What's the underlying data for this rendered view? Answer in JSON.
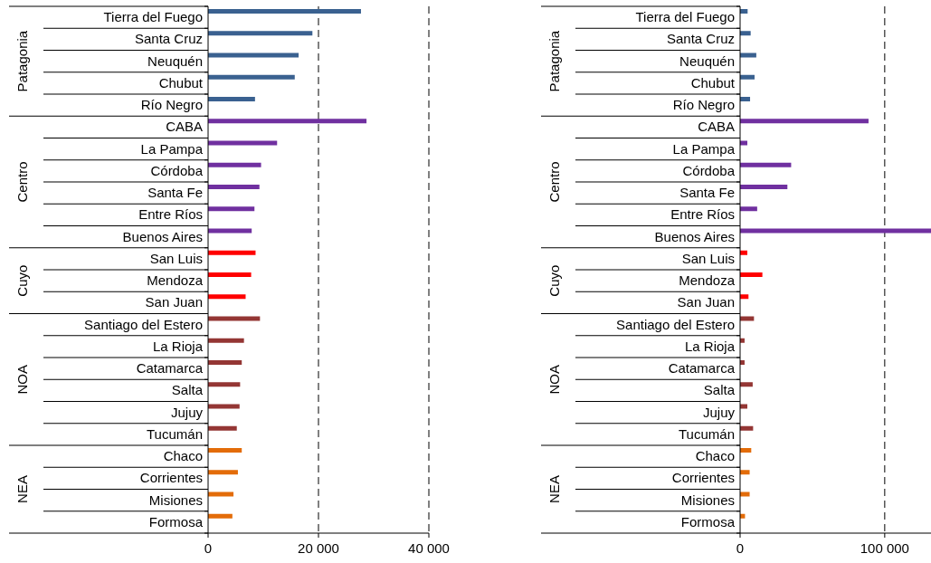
{
  "chart_data": [
    {
      "type": "bar",
      "orientation": "horizontal",
      "grid": "x",
      "xlim": [
        0,
        40000
      ],
      "xticks": [
        0,
        {
          "value": 20000,
          "label": "20 000"
        },
        {
          "value": 40000,
          "label": "40 000"
        }
      ],
      "categories": [
        "Tierra del Fuego",
        "Santa Cruz",
        "Neuquén",
        "Chubut",
        "Río Negro",
        "CABA",
        "La Pampa",
        "Córdoba",
        "Santa Fe",
        "Entre Ríos",
        "Buenos Aires",
        "San Luis",
        "Mendoza",
        "San Juan",
        "Santiago del Estero",
        "La Rioja",
        "Catamarca",
        "Salta",
        "Jujuy",
        "Tucumán",
        "Chaco",
        "Corrientes",
        "Misiones",
        "Formosa"
      ],
      "series": [
        {
          "name": "Patagonia",
          "color": "#3a6190",
          "values": [
            27700,
            18900,
            16400,
            15700,
            8500,
            null,
            null,
            null,
            null,
            null,
            null,
            null,
            null,
            null,
            null,
            null,
            null,
            null,
            null,
            null,
            null,
            null,
            null,
            null
          ]
        },
        {
          "name": "Centro",
          "color": "#7030a0",
          "values": [
            null,
            null,
            null,
            null,
            null,
            28700,
            12500,
            9600,
            9300,
            8400,
            7900,
            null,
            null,
            null,
            null,
            null,
            null,
            null,
            null,
            null,
            null,
            null,
            null,
            null
          ]
        },
        {
          "name": "Cuyo",
          "color": "#ff0000",
          "values": [
            null,
            null,
            null,
            null,
            null,
            null,
            null,
            null,
            null,
            null,
            null,
            8600,
            7800,
            6800,
            null,
            null,
            null,
            null,
            null,
            null,
            null,
            null,
            null,
            null
          ]
        },
        {
          "name": "NOA",
          "color": "#943634",
          "values": [
            null,
            null,
            null,
            null,
            null,
            null,
            null,
            null,
            null,
            null,
            null,
            null,
            null,
            null,
            9400,
            6500,
            6100,
            5800,
            5700,
            5200,
            null,
            null,
            null,
            null
          ]
        },
        {
          "name": "NEA",
          "color": "#e36c09",
          "values": [
            null,
            null,
            null,
            null,
            null,
            null,
            null,
            null,
            null,
            null,
            null,
            null,
            null,
            null,
            null,
            null,
            null,
            null,
            null,
            null,
            6100,
            5400,
            4600,
            4400
          ]
        }
      ]
    },
    {
      "type": "bar",
      "orientation": "horizontal",
      "grid": "x",
      "xlim": [
        0,
        132000
      ],
      "xticks": [
        0,
        {
          "value": 100000,
          "label": "100 000"
        }
      ],
      "categories": [
        "Tierra del Fuego",
        "Santa Cruz",
        "Neuquén",
        "Chubut",
        "Río Negro",
        "CABA",
        "La Pampa",
        "Córdoba",
        "Santa Fe",
        "Entre Ríos",
        "Buenos Aires",
        "San Luis",
        "Mendoza",
        "San Juan",
        "Santiago del Estero",
        "La Rioja",
        "Catamarca",
        "Salta",
        "Jujuy",
        "Tucumán",
        "Chaco",
        "Corrientes",
        "Misiones",
        "Formosa"
      ],
      "series": [
        {
          "name": "Patagonia",
          "color": "#3a6190",
          "values": [
            5200,
            7300,
            11200,
            10000,
            6900,
            null,
            null,
            null,
            null,
            null,
            null,
            null,
            null,
            null,
            null,
            null,
            null,
            null,
            null,
            null,
            null,
            null,
            null,
            null
          ]
        },
        {
          "name": "Centro",
          "color": "#7030a0",
          "values": [
            null,
            null,
            null,
            null,
            null,
            88800,
            5000,
            35300,
            32700,
            11800,
            132000,
            null,
            null,
            null,
            null,
            null,
            null,
            null,
            null,
            null,
            null,
            null,
            null,
            null
          ]
        },
        {
          "name": "Cuyo",
          "color": "#ff0000",
          "values": [
            null,
            null,
            null,
            null,
            null,
            null,
            null,
            null,
            null,
            null,
            null,
            5000,
            15400,
            5800,
            null,
            null,
            null,
            null,
            null,
            null,
            null,
            null,
            null,
            null
          ]
        },
        {
          "name": "NOA",
          "color": "#943634",
          "values": [
            null,
            null,
            null,
            null,
            null,
            null,
            null,
            null,
            null,
            null,
            null,
            null,
            null,
            null,
            9600,
            3100,
            3100,
            8700,
            5000,
            9000,
            null,
            null,
            null,
            null
          ]
        },
        {
          "name": "NEA",
          "color": "#e36c09",
          "values": [
            null,
            null,
            null,
            null,
            null,
            null,
            null,
            null,
            null,
            null,
            null,
            null,
            null,
            null,
            null,
            null,
            null,
            null,
            null,
            null,
            7700,
            6600,
            6600,
            3400
          ]
        }
      ]
    }
  ]
}
